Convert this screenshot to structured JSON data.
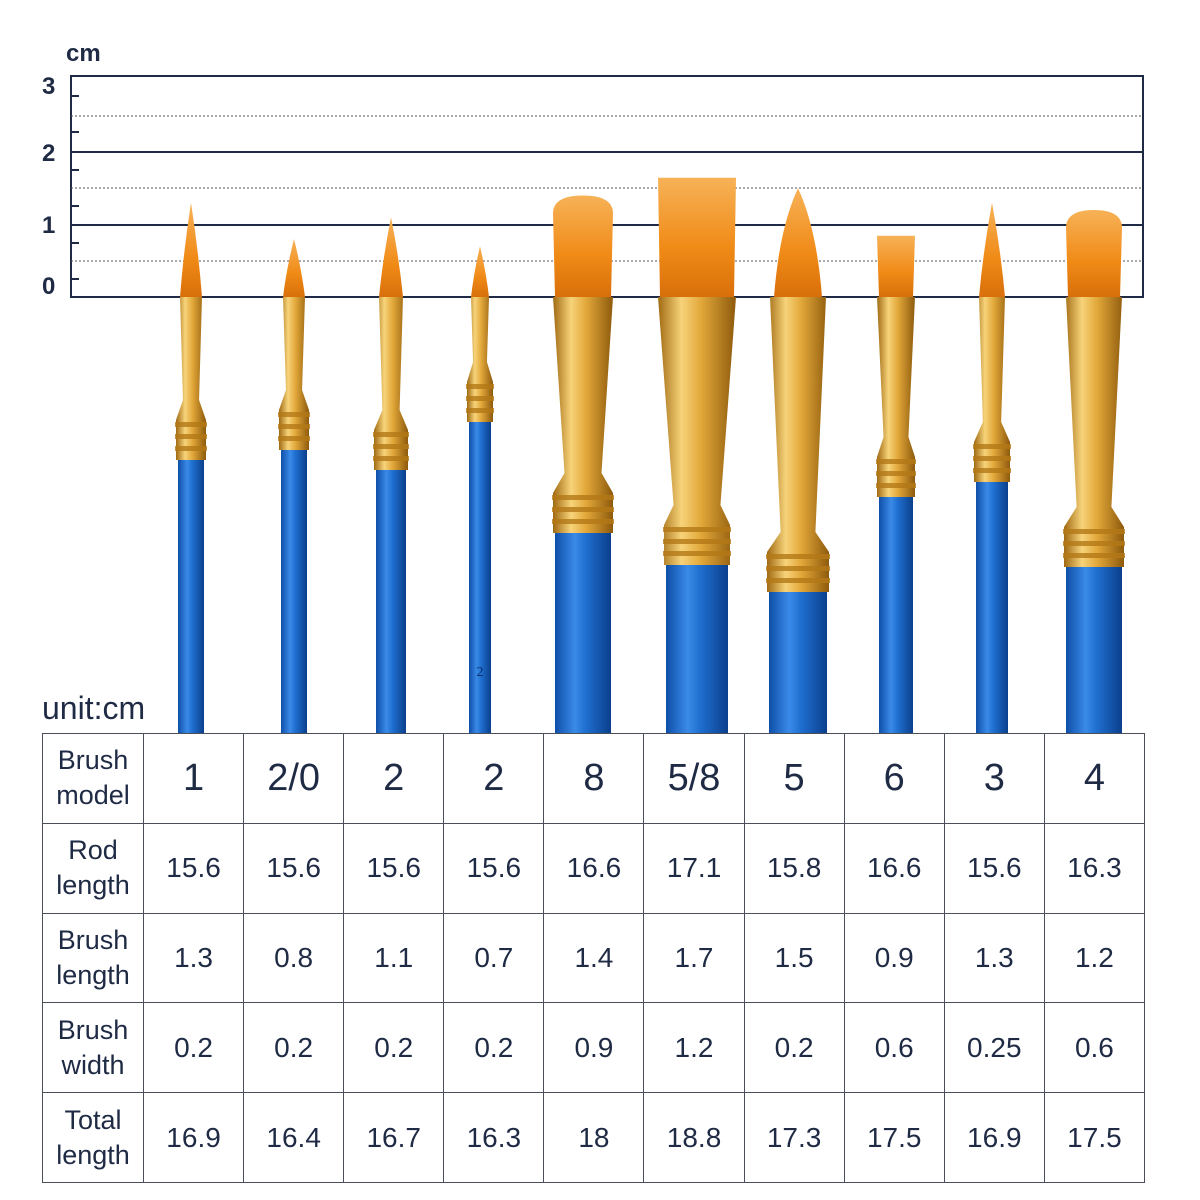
{
  "ruler": {
    "unit_label": "cm",
    "tick_labels": [
      "3",
      "2",
      "1",
      "0"
    ]
  },
  "unit_caption": "unit:cm",
  "colors": {
    "handle": "#1f6fd0",
    "ferrule": "#d9a031",
    "bristle": "#f08a16",
    "text": "#1f2a44"
  },
  "brushes": [
    {
      "model": "1",
      "shape": "round",
      "brush_length": 1.3,
      "brush_width": 0.2
    },
    {
      "model": "2/0",
      "shape": "round",
      "brush_length": 0.8,
      "brush_width": 0.2
    },
    {
      "model": "2",
      "shape": "round",
      "brush_length": 1.1,
      "brush_width": 0.2
    },
    {
      "model": "2",
      "shape": "round",
      "brush_length": 0.7,
      "brush_width": 0.2,
      "handle_mark": "2"
    },
    {
      "model": "8",
      "shape": "flat-rounded",
      "brush_length": 1.4,
      "brush_width": 0.9
    },
    {
      "model": "5/8",
      "shape": "flat",
      "brush_length": 1.7,
      "brush_width": 1.2
    },
    {
      "model": "5",
      "shape": "pointed-wide",
      "brush_length": 1.5,
      "brush_width": 0.2
    },
    {
      "model": "6",
      "shape": "flat",
      "brush_length": 0.9,
      "brush_width": 0.6
    },
    {
      "model": "3",
      "shape": "round",
      "brush_length": 1.3,
      "brush_width": 0.25
    },
    {
      "model": "4",
      "shape": "filbert",
      "brush_length": 1.2,
      "brush_width": 0.6
    }
  ],
  "table": {
    "rows": [
      {
        "label": "Brush model",
        "values": [
          "1",
          "2/0",
          "2",
          "2",
          "8",
          "5/8",
          "5",
          "6",
          "3",
          "4"
        ]
      },
      {
        "label": "Rod length",
        "values": [
          "15.6",
          "15.6",
          "15.6",
          "15.6",
          "16.6",
          "17.1",
          "15.8",
          "16.6",
          "15.6",
          "16.3"
        ]
      },
      {
        "label": "Brush length",
        "values": [
          "1.3",
          "0.8",
          "1.1",
          "0.7",
          "1.4",
          "1.7",
          "1.5",
          "0.9",
          "1.3",
          "1.2"
        ]
      },
      {
        "label": "Brush width",
        "values": [
          "0.2",
          "0.2",
          "0.2",
          "0.2",
          "0.9",
          "1.2",
          "0.2",
          "0.6",
          "0.25",
          "0.6"
        ]
      },
      {
        "label": "Total length",
        "values": [
          "16.9",
          "16.4",
          "16.7",
          "16.3",
          "18",
          "18.8",
          "17.3",
          "17.5",
          "16.9",
          "17.5"
        ]
      }
    ]
  }
}
